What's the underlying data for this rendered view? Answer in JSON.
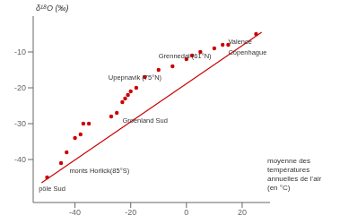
{
  "chart_data": {
    "type": "scatter",
    "xlabel": "moyenne des\ntempératures\nannuelles de l’air\n(en °C)",
    "ylabel": "δ¹⁸O (‰)",
    "xlim": [
      -55,
      30
    ],
    "ylim": [
      -52,
      0
    ],
    "xticks": [
      -40,
      -20,
      0,
      20
    ],
    "yticks": [
      -40,
      -30,
      -20,
      -10
    ],
    "grid": false,
    "series": [
      {
        "type": "scatter",
        "color": "#cc0000",
        "x": [
          -50,
          -45,
          -43,
          -40,
          -38,
          -37,
          -35,
          -27,
          -25,
          -23,
          -22,
          -21,
          -20,
          -18,
          -15,
          -10,
          -5,
          0,
          2,
          5,
          10,
          13,
          15,
          25
        ],
        "y": [
          -45,
          -41,
          -38,
          -34,
          -33,
          -30,
          -30,
          -28,
          -27,
          -24,
          -23,
          -22,
          -21,
          -20,
          -17,
          -15,
          -14,
          -12,
          -11,
          -10,
          -9,
          -8,
          -8,
          -5
        ]
      },
      {
        "type": "line",
        "color": "#cc0000",
        "x": [
          -52,
          27
        ],
        "y": [
          -46.5,
          -4.5
        ]
      }
    ],
    "annotations": [
      {
        "text": "Grennedal (61°N)",
        "x": -10,
        "y": -11
      },
      {
        "text": "Upepnavik (75°N)",
        "x": -28,
        "y": -17
      },
      {
        "text": "Groenland Sud",
        "x": -23,
        "y": -29
      },
      {
        "text": "Valence",
        "x": 15,
        "y": -7
      },
      {
        "text": "Copenhague",
        "x": 15,
        "y": -10
      },
      {
        "text": "monts Horlick(85°S)",
        "x": -42,
        "y": -43
      },
      {
        "text": "pôle Sud",
        "x": -53,
        "y": -48
      }
    ]
  }
}
